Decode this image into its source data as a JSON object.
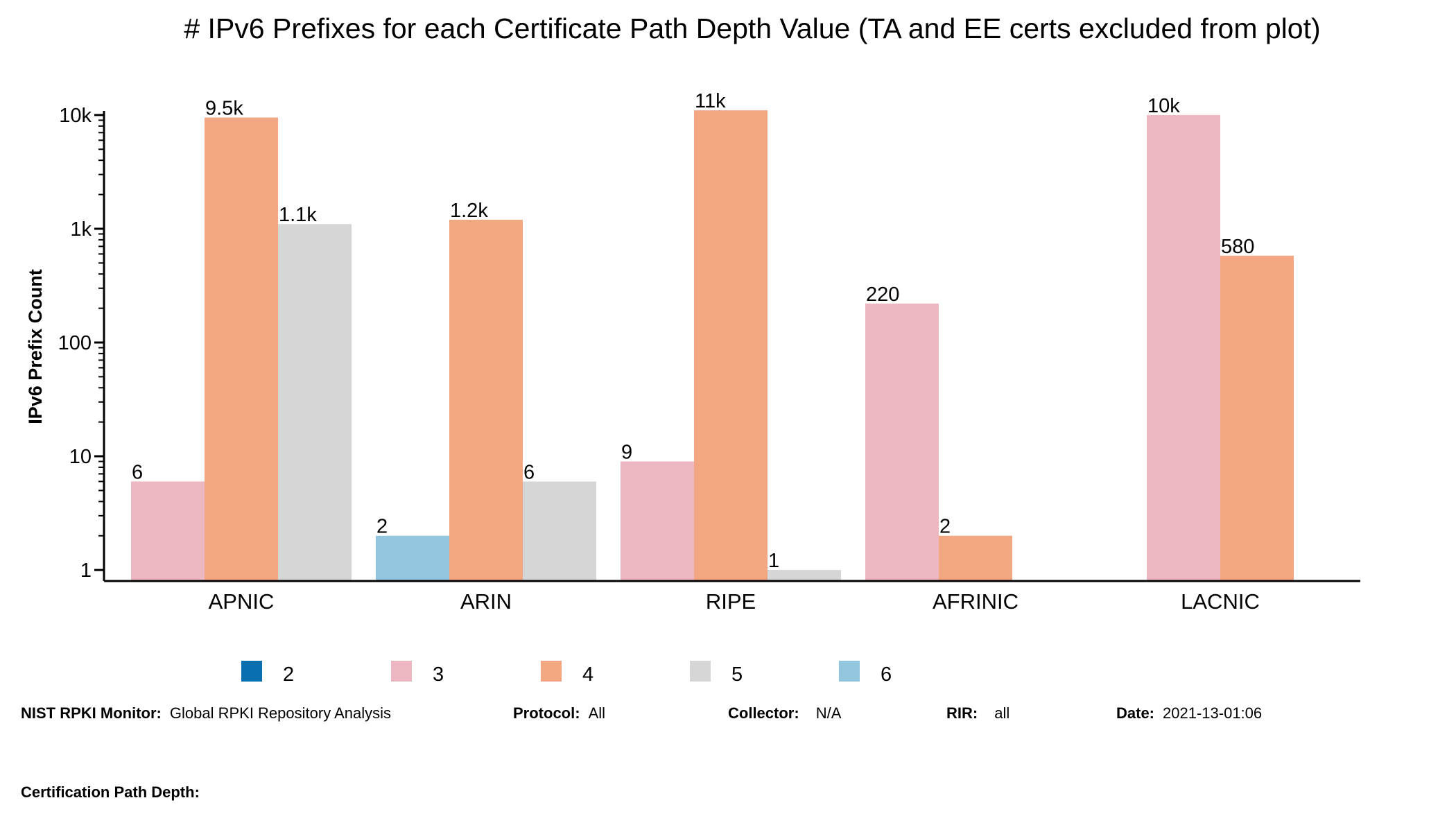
{
  "chart_data": {
    "type": "bar",
    "title": "# IPv6 Prefixes for each Certificate Path Depth Value (TA and EE certs excluded from plot)",
    "xlabel": "",
    "ylabel": "IPv6 Prefix Count",
    "yscale": "log",
    "ylim": [
      0.8,
      12500
    ],
    "yticks": [
      {
        "value": 1,
        "label": "1"
      },
      {
        "value": 10,
        "label": "10"
      },
      {
        "value": 100,
        "label": "100"
      },
      {
        "value": 1000,
        "label": "1k"
      },
      {
        "value": 10000,
        "label": "10k"
      }
    ],
    "categories": [
      "APNIC",
      "ARIN",
      "RIPE",
      "AFRINIC",
      "LACNIC"
    ],
    "series": [
      {
        "name": "2",
        "color": "#0a6fb0",
        "values": [
          null,
          null,
          null,
          null,
          null
        ],
        "labels": [
          null,
          null,
          null,
          null,
          null
        ]
      },
      {
        "name": "3",
        "color": "#edb7c1",
        "values": [
          6,
          null,
          9,
          220,
          10000
        ],
        "labels": [
          "6",
          null,
          "9",
          "220",
          "10k"
        ]
      },
      {
        "name": "4",
        "color": "#f2a682",
        "values": [
          9500,
          1200,
          11000,
          2,
          580
        ],
        "labels": [
          "9.5k",
          "1.2k",
          "11k",
          "2",
          "580"
        ]
      },
      {
        "name": "5",
        "color": "#d6d6d6",
        "values": [
          1100,
          6,
          1,
          null,
          null
        ],
        "labels": [
          "1.1k",
          "6",
          "1",
          null,
          null
        ]
      },
      {
        "name": "6",
        "color": "#92c5de",
        "values": [
          null,
          2,
          null,
          null,
          null
        ],
        "labels": [
          null,
          "2",
          null,
          null,
          null
        ]
      }
    ],
    "legend_position": "bottom"
  },
  "footer": {
    "monitor_label": "NIST RPKI Monitor:",
    "monitor_value": "Global RPKI Repository Analysis",
    "protocol_label": "Protocol:",
    "protocol_value": "All",
    "collector_label": "Collector:",
    "collector_value": "N/A",
    "rir_label": "RIR:",
    "rir_value": "all",
    "date_label": "Date:",
    "date_value": "2021-13-01:06",
    "depth_label": "Certification Path Depth:"
  }
}
